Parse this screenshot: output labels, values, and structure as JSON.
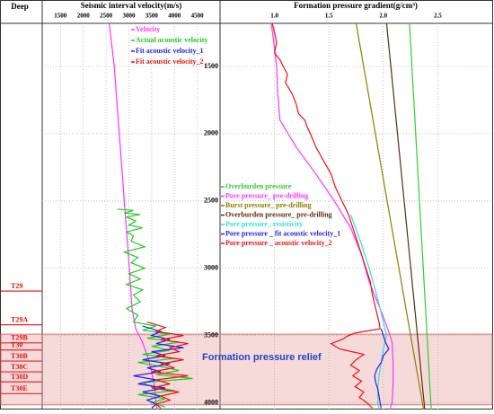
{
  "depth_axis": {
    "label": "Deep",
    "ylim": [
      1180,
      4050
    ],
    "yticks": [
      1500,
      2000,
      2500,
      3000,
      3500,
      4000
    ]
  },
  "strata": [
    {
      "label": "T29",
      "depth": 3170
    },
    {
      "label": "T29A",
      "depth": 3420
    },
    {
      "label": "T29B",
      "depth": 3555
    },
    {
      "label": "T30",
      "depth": 3608
    },
    {
      "label": "T30B",
      "depth": 3690
    },
    {
      "label": "T30C",
      "depth": 3770
    },
    {
      "label": "T30D",
      "depth": 3845
    },
    {
      "label": "T30E",
      "depth": 3932
    }
  ],
  "relief_zone": {
    "label": "Formation pressure relief",
    "range": [
      3490,
      4015
    ]
  },
  "chart_data": [
    {
      "type": "line",
      "title": "Seismic interval velocity(m/s)",
      "xlim": [
        1100,
        5000
      ],
      "xticks": [
        1500,
        2000,
        2500,
        3000,
        3500,
        4000,
        4500
      ],
      "grid": true,
      "series": [
        {
          "name": "Velocity",
          "color": "#ff33ff",
          "depth": [
            1180,
            1500,
            2000,
            2500,
            3000,
            3300,
            3450,
            3550,
            3700,
            3850,
            4000,
            4050
          ],
          "values": [
            2570,
            2680,
            2790,
            2900,
            3010,
            3070,
            3150,
            3300,
            3450,
            3550,
            3600,
            3620
          ]
        },
        {
          "name": "Actual acoustic velocity",
          "color": "#22cc22",
          "depth": [
            2560,
            2570,
            2590,
            2600,
            2620,
            2650,
            2680,
            2700,
            2730,
            2760,
            2800,
            2840,
            2880,
            2920,
            2960,
            3000,
            3040,
            3080,
            3120,
            3160,
            3200,
            3250,
            3300,
            3350,
            3400,
            3430,
            3460,
            3490,
            3520,
            3550,
            3580,
            3610,
            3640,
            3670,
            3700,
            3730,
            3760,
            3790,
            3820,
            3850,
            3880,
            3910,
            3940,
            3970,
            4000,
            4030
          ],
          "values": [
            2750,
            3100,
            2900,
            3250,
            2950,
            3150,
            3000,
            3300,
            2950,
            3100,
            3050,
            3350,
            2900,
            3200,
            3050,
            3350,
            3000,
            3250,
            2950,
            3300,
            3100,
            3250,
            2950,
            3200,
            3100,
            3600,
            3300,
            3900,
            3400,
            4100,
            3500,
            3900,
            3300,
            4000,
            3200,
            3700,
            4100,
            3600,
            4400,
            3300,
            3500,
            4000,
            3200,
            3800,
            3500,
            3800
          ]
        },
        {
          "name": "Fit acoustic velocity_1",
          "color": "#2222ee",
          "depth": [
            3430,
            3470,
            3500,
            3530,
            3560,
            3590,
            3620,
            3650,
            3680,
            3710,
            3740,
            3770,
            3800,
            3830,
            3860,
            3890,
            3920,
            3950,
            3980,
            4010,
            4040
          ],
          "values": [
            3300,
            3700,
            3500,
            3900,
            3600,
            4200,
            3500,
            3800,
            3300,
            3900,
            3400,
            3700,
            3100,
            3600,
            3200,
            3800,
            3300,
            3700,
            3400,
            3600,
            3500
          ]
        },
        {
          "name": "Fit acoustic velocity_2",
          "color": "#ee1111",
          "depth": [
            3400,
            3440,
            3470,
            3500,
            3530,
            3560,
            3590,
            3620,
            3650,
            3680,
            3710,
            3740,
            3770,
            3800,
            3830,
            3860,
            3890,
            3920,
            3950,
            3980,
            4010,
            4040
          ],
          "values": [
            3400,
            3800,
            3600,
            4200,
            3700,
            4300,
            3900,
            4100,
            3600,
            4200,
            3700,
            4000,
            3500,
            4300,
            3600,
            3900,
            3500,
            4100,
            3700,
            3900,
            3600,
            3700
          ]
        }
      ]
    },
    {
      "type": "line",
      "title": "Formation pressure gradient(g/cm³)",
      "xlim": [
        0.5,
        3.0
      ],
      "xticks": [
        {
          "value": 1,
          "label": "1.0"
        },
        1.5,
        {
          "value": 2,
          "label": "2.0"
        },
        2.5
      ],
      "grid": true,
      "series": [
        {
          "name": "Overburden pressure",
          "color": "#33cc33",
          "depth": [
            1180,
            4050
          ],
          "values": [
            2.24,
            2.44
          ]
        },
        {
          "name": "Pore pressure_ pre-drilling",
          "color": "#ff33ff",
          "depth": [
            1180,
            1300,
            1500,
            1700,
            1900,
            2100,
            2300,
            2500,
            2700,
            2900,
            3100,
            3300,
            3450,
            3550,
            3700,
            3850,
            4000,
            4050
          ],
          "values": [
            0.97,
            0.99,
            1.02,
            1.03,
            1.05,
            1.2,
            1.38,
            1.55,
            1.7,
            1.8,
            1.87,
            1.97,
            2.04,
            2.08,
            2.09,
            2.09,
            2.08,
            2.06
          ]
        },
        {
          "name": "Burst pressure_ pre-drilling",
          "color": "#8b8000",
          "depth": [
            1180,
            4050
          ],
          "values": [
            1.75,
            2.37
          ]
        },
        {
          "name": "Overburden pressure_ pre-drilling",
          "color": "#5a2d0c",
          "depth": [
            1180,
            4050
          ],
          "values": [
            2.03,
            2.38
          ]
        },
        {
          "name": "Pore pressure_ resistivity",
          "color": "#33dddd",
          "depth": [
            2600,
            2800,
            3000,
            3200,
            3400,
            3500,
            3600,
            3700,
            3800,
            3900,
            4000,
            4040
          ],
          "values": [
            1.7,
            1.79,
            1.87,
            1.94,
            2.0,
            2.03,
            2.0,
            1.98,
            1.96,
            1.95,
            1.95,
            1.96
          ]
        },
        {
          "name": "Pore pressure _ fit acoustic velocity_1",
          "color": "#2222ee",
          "depth": [
            3450,
            3500,
            3550,
            3600,
            3650,
            3700,
            3750,
            3800,
            3850,
            3900,
            3950,
            4000,
            4040
          ],
          "values": [
            1.98,
            2.0,
            2.02,
            2.05,
            2.0,
            1.98,
            1.94,
            1.92,
            1.93,
            1.95,
            1.96,
            1.97,
            1.98
          ]
        },
        {
          "name": "Pore pressure _ acoustic velocity_2",
          "color": "#ee1111",
          "depth": [
            1180,
            1250,
            1320,
            1400,
            1450,
            1500,
            1560,
            1620,
            1700,
            1780,
            1850,
            1900,
            1950,
            2000,
            2100,
            2200,
            2300,
            2400,
            2500,
            2600,
            2700,
            2800,
            2900,
            3000,
            3100,
            3200,
            3300,
            3400,
            3450,
            3480,
            3500,
            3530,
            3560,
            3600,
            3640,
            3680,
            3720,
            3760,
            3800,
            3840,
            3880,
            3920,
            3960,
            4000,
            4040
          ],
          "values": [
            0.98,
            1.0,
            1.02,
            1.0,
            1.05,
            1.08,
            1.12,
            1.1,
            1.16,
            1.2,
            1.22,
            1.28,
            1.3,
            1.33,
            1.38,
            1.45,
            1.52,
            1.56,
            1.62,
            1.68,
            1.72,
            1.76,
            1.8,
            1.84,
            1.88,
            1.9,
            1.93,
            1.96,
            1.97,
            1.75,
            1.68,
            1.62,
            1.52,
            1.6,
            1.82,
            1.75,
            1.7,
            1.78,
            1.72,
            1.8,
            1.74,
            1.82,
            1.78,
            1.85,
            1.9
          ]
        }
      ]
    }
  ]
}
